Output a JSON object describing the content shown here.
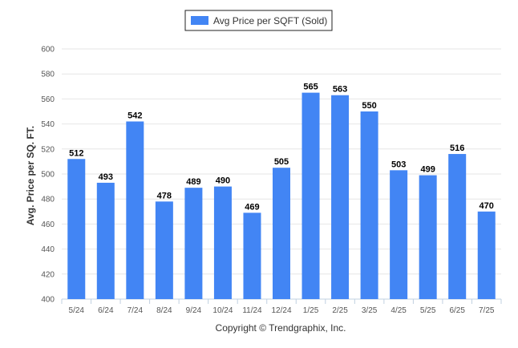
{
  "chart_data": {
    "type": "bar",
    "title": "",
    "xlabel": "",
    "ylabel": "Avg. Price per SQ. FT.",
    "categories": [
      "5/24",
      "6/24",
      "7/24",
      "8/24",
      "9/24",
      "10/24",
      "11/24",
      "12/24",
      "1/25",
      "2/25",
      "3/25",
      "4/25",
      "5/25",
      "6/25",
      "7/25"
    ],
    "series": [
      {
        "name": "Avg Price per SQFT (Sold)",
        "values": [
          512,
          493,
          542,
          478,
          489,
          490,
          469,
          505,
          565,
          563,
          550,
          503,
          499,
          516,
          470
        ],
        "color": "#4285f4"
      }
    ],
    "ylim": [
      400,
      600
    ],
    "yticks": [
      400,
      420,
      440,
      460,
      480,
      500,
      520,
      540,
      560,
      580,
      600
    ],
    "grid": true,
    "legend": "top-center",
    "data_labels": true
  },
  "credits": "Copyright © Trendgraphix, Inc."
}
